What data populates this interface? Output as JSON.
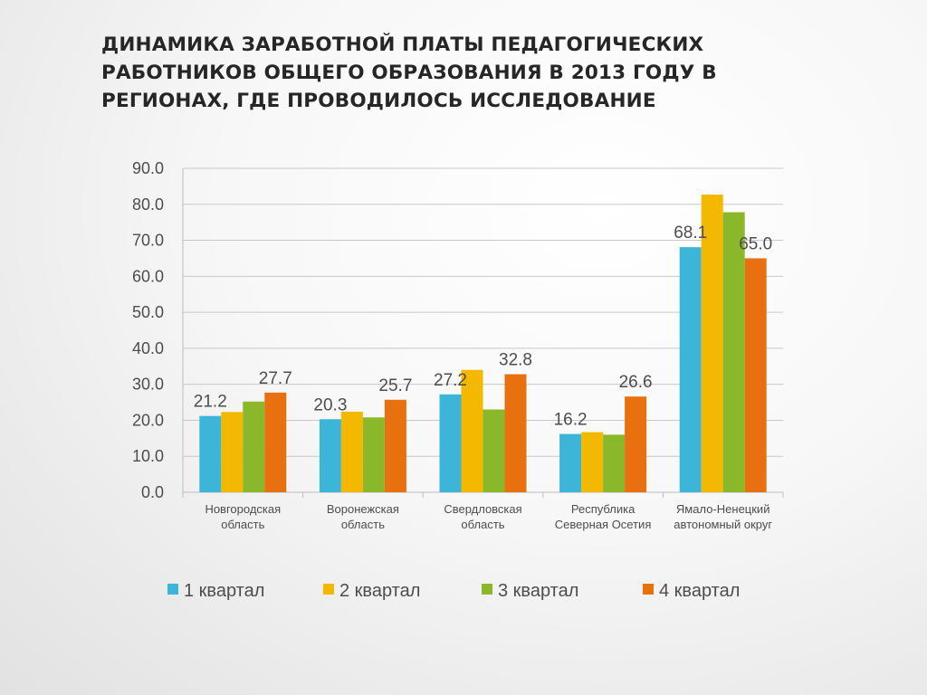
{
  "title": "Динамика заработной платы педагогических работников общего образования в 2013 году в регионах, где проводилось исследование",
  "chart_data": {
    "type": "bar",
    "categories": [
      [
        "Новгородская",
        "область"
      ],
      [
        "Воронежская",
        "область"
      ],
      [
        "Свердловская",
        "область"
      ],
      [
        "Республика",
        "Северная Осетия"
      ],
      [
        "Ямало-Ненецкий",
        "автономный округ"
      ]
    ],
    "series": [
      {
        "name": "1 квартал",
        "color": "#3db5d8",
        "values": [
          21.2,
          20.3,
          27.2,
          16.2,
          68.1
        ],
        "labels": [
          "21.2",
          "20.3",
          "27.2",
          "16.2",
          "68.1"
        ]
      },
      {
        "name": "2 квартал",
        "color": "#f5b800",
        "values": [
          22.3,
          22.4,
          34.0,
          16.7,
          82.7
        ],
        "labels": [
          null,
          null,
          null,
          null,
          null
        ]
      },
      {
        "name": "3 квартал",
        "color": "#8bb82a",
        "values": [
          25.2,
          20.8,
          23.0,
          16.0,
          77.8
        ],
        "labels": [
          null,
          null,
          null,
          null,
          null
        ]
      },
      {
        "name": "4 квартал",
        "color": "#e8700f",
        "values": [
          27.7,
          25.7,
          32.8,
          26.6,
          65.0
        ],
        "labels": [
          "27.7",
          "25.7",
          "32.8",
          "26.6",
          "65.0"
        ]
      }
    ],
    "ylim": [
      0,
      90
    ],
    "yticks": [
      "0.0",
      "10.0",
      "20.0",
      "30.0",
      "40.0",
      "50.0",
      "60.0",
      "70.0",
      "80.0",
      "90.0"
    ],
    "grid": true,
    "legend": "bottom",
    "xlabel": "",
    "ylabel": ""
  }
}
